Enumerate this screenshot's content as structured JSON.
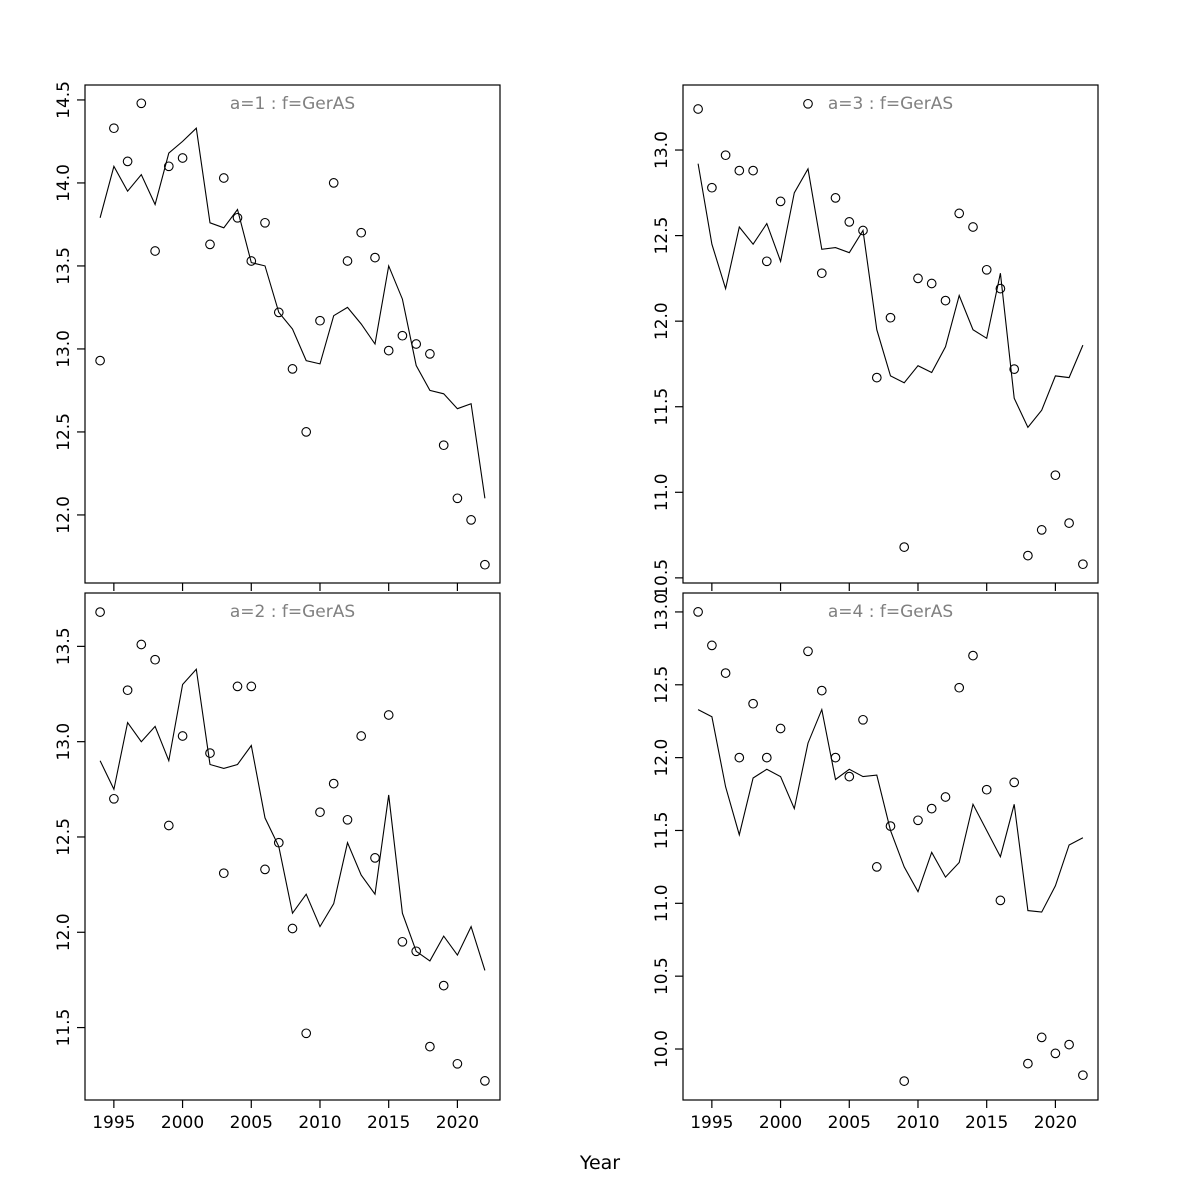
{
  "figure": {
    "background": "#ffffff"
  },
  "xlabel": "Year",
  "chart_data": {
    "type": "line+scatter multipanel",
    "xlabel": "Year",
    "x": [
      1994,
      1995,
      1996,
      1997,
      1998,
      1999,
      2000,
      2001,
      2002,
      2003,
      2004,
      2005,
      2006,
      2007,
      2008,
      2009,
      2010,
      2011,
      2012,
      2013,
      2014,
      2015,
      2016,
      2017,
      2018,
      2019,
      2020,
      2021,
      2022
    ],
    "x_ticks": [
      1995,
      2000,
      2005,
      2010,
      2015,
      2020
    ],
    "xlim": [
      1992.9,
      2023.1
    ],
    "grid": false,
    "legend": "none",
    "styles": {
      "point_color": "#000000",
      "line_color": "#000000",
      "title_color": "#808080",
      "axis_color": "#000000"
    },
    "panels": [
      {
        "title": "a=1  :  f=GerAS",
        "position": "top-left",
        "ylim": [
          11.59,
          14.59
        ],
        "y_ticks": [
          12.0,
          12.5,
          13.0,
          13.5,
          14.0,
          14.5
        ],
        "show_x_tick_labels": false,
        "points": [
          12.93,
          14.33,
          14.13,
          14.48,
          13.59,
          14.1,
          14.15,
          null,
          13.63,
          14.03,
          13.79,
          13.53,
          13.76,
          13.22,
          12.88,
          12.5,
          13.17,
          14.0,
          13.53,
          13.7,
          13.55,
          12.99,
          13.08,
          13.03,
          12.97,
          12.42,
          12.1,
          11.97,
          11.7
        ],
        "line": [
          13.79,
          14.1,
          13.95,
          14.05,
          13.87,
          14.18,
          14.25,
          14.33,
          13.76,
          13.73,
          13.84,
          13.52,
          13.5,
          13.22,
          13.12,
          12.93,
          12.91,
          13.2,
          13.25,
          13.15,
          13.03,
          13.5,
          13.3,
          12.9,
          12.75,
          12.73,
          12.64,
          12.67,
          12.1
        ]
      },
      {
        "title": "a=3  :  f=GerAS",
        "position": "top-right",
        "ylim": [
          10.47,
          13.38
        ],
        "y_ticks": [
          10.5,
          11.0,
          11.5,
          12.0,
          12.5,
          13.0
        ],
        "show_x_tick_labels": false,
        "points": [
          13.24,
          12.78,
          12.97,
          12.88,
          12.88,
          12.35,
          12.7,
          null,
          13.27,
          12.28,
          12.72,
          12.58,
          12.53,
          11.67,
          12.02,
          10.68,
          12.25,
          12.22,
          12.12,
          12.63,
          12.55,
          12.3,
          12.19,
          11.72,
          10.63,
          10.78,
          11.1,
          10.82,
          10.58
        ],
        "line": [
          12.92,
          12.45,
          12.19,
          12.55,
          12.45,
          12.57,
          12.35,
          12.75,
          12.89,
          12.42,
          12.43,
          12.4,
          12.53,
          11.95,
          11.68,
          11.64,
          11.74,
          11.7,
          11.85,
          12.15,
          11.95,
          11.9,
          12.28,
          11.55,
          11.38,
          11.48,
          11.68,
          11.67,
          11.86
        ]
      },
      {
        "title": "a=2  :  f=GerAS",
        "position": "bottom-left",
        "ylim": [
          11.12,
          13.78
        ],
        "y_ticks": [
          11.5,
          12.0,
          12.5,
          13.0,
          13.5
        ],
        "show_x_tick_labels": true,
        "points": [
          13.68,
          12.7,
          13.27,
          13.51,
          13.43,
          12.56,
          13.03,
          null,
          12.94,
          12.31,
          13.29,
          13.29,
          12.33,
          12.47,
          12.02,
          11.47,
          12.63,
          12.78,
          12.59,
          13.03,
          12.39,
          13.14,
          11.95,
          11.9,
          11.4,
          11.72,
          11.31,
          null,
          11.22
        ],
        "line": [
          12.9,
          12.75,
          13.1,
          13.0,
          13.08,
          12.9,
          13.3,
          13.38,
          12.88,
          12.86,
          12.88,
          12.98,
          12.6,
          12.45,
          12.1,
          12.2,
          12.03,
          12.15,
          12.47,
          12.3,
          12.2,
          12.72,
          12.1,
          11.9,
          11.85,
          11.98,
          11.88,
          12.03,
          11.8
        ]
      },
      {
        "title": "a=4  :  f=GerAS",
        "position": "bottom-right",
        "ylim": [
          9.65,
          13.13
        ],
        "y_ticks": [
          10.0,
          10.5,
          11.0,
          11.5,
          12.0,
          12.5,
          13.0
        ],
        "show_x_tick_labels": true,
        "points": [
          13.0,
          12.77,
          12.58,
          12.0,
          12.37,
          12.0,
          12.2,
          null,
          12.73,
          12.46,
          12.0,
          11.87,
          12.26,
          11.25,
          11.53,
          9.78,
          11.57,
          11.65,
          11.73,
          12.48,
          12.7,
          11.78,
          11.02,
          11.83,
          9.9,
          10.08,
          9.97,
          10.03,
          9.82
        ],
        "line": [
          12.33,
          12.28,
          11.8,
          11.47,
          11.86,
          11.92,
          11.87,
          11.65,
          12.1,
          12.33,
          11.85,
          11.92,
          11.87,
          11.88,
          11.5,
          11.25,
          11.08,
          11.35,
          11.18,
          11.28,
          11.68,
          11.5,
          11.32,
          11.68,
          10.95,
          10.94,
          11.12,
          11.4,
          11.45
        ]
      }
    ]
  }
}
